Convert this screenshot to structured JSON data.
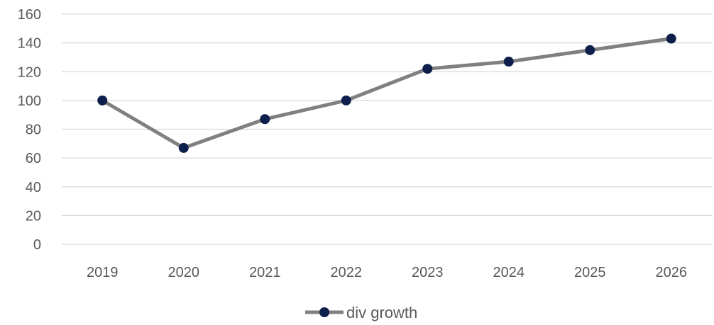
{
  "chart_data": {
    "type": "line",
    "title": "",
    "xlabel": "",
    "ylabel": "",
    "categories": [
      "2019",
      "2020",
      "2021",
      "2022",
      "2023",
      "2024",
      "2025",
      "2026"
    ],
    "series": [
      {
        "name": "div growth",
        "values": [
          100,
          67,
          87,
          100,
          122,
          127,
          135,
          143
        ],
        "line_color": "#808080",
        "marker_color": "#0d1f4a"
      }
    ],
    "ylim": [
      0,
      160
    ],
    "yticks": [
      0,
      20,
      40,
      60,
      80,
      100,
      120,
      140,
      160
    ],
    "grid": true,
    "grid_color": "#d9d9d9",
    "legend_position": "bottom"
  }
}
